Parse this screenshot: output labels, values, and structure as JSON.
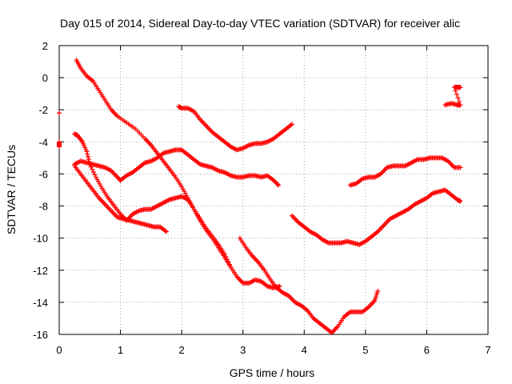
{
  "chart_data": {
    "type": "scatter",
    "title": "Day 015 of 2014, Sidereal Day-to-day VTEC variation (SDTVAR) for receiver alic",
    "xlabel": "GPS time / hours",
    "ylabel": "SDTVAR / TECUs",
    "xlim": [
      0,
      7
    ],
    "ylim": [
      -16,
      2
    ],
    "xticks": [
      "0",
      "1",
      "2",
      "3",
      "4",
      "5",
      "6",
      "7"
    ],
    "yticks": [
      "2",
      "0",
      "-2",
      "-4",
      "-6",
      "-8",
      "-10",
      "-12",
      "-14",
      "-16"
    ],
    "grid": true,
    "marker": "plus",
    "color": "#ff0000",
    "series": [
      {
        "points": [
          [
            0.28,
            1.1
          ],
          [
            0.35,
            0.6
          ],
          [
            0.45,
            0.1
          ],
          [
            0.55,
            -0.2
          ],
          [
            0.65,
            -0.8
          ],
          [
            0.75,
            -1.4
          ],
          [
            0.85,
            -2.0
          ],
          [
            0.95,
            -2.4
          ],
          [
            1.1,
            -2.8
          ],
          [
            1.25,
            -3.2
          ],
          [
            1.4,
            -3.8
          ],
          [
            1.5,
            -4.2
          ],
          [
            1.6,
            -4.7
          ],
          [
            1.7,
            -5.2
          ],
          [
            1.8,
            -5.7
          ],
          [
            1.9,
            -6.2
          ],
          [
            2.0,
            -6.8
          ],
          [
            2.1,
            -7.5
          ],
          [
            2.2,
            -8.2
          ],
          [
            2.3,
            -8.8
          ],
          [
            2.4,
            -9.4
          ],
          [
            2.5,
            -9.9
          ],
          [
            2.6,
            -10.4
          ],
          [
            2.7,
            -11.0
          ],
          [
            2.8,
            -11.8
          ],
          [
            2.9,
            -12.4
          ],
          [
            3.0,
            -12.8
          ],
          [
            3.1,
            -12.8
          ],
          [
            3.2,
            -12.6
          ],
          [
            3.3,
            -12.7
          ],
          [
            3.4,
            -13.0
          ],
          [
            3.5,
            -13.1
          ],
          [
            3.6,
            -13.0
          ]
        ]
      },
      {
        "points": [
          [
            0.25,
            -5.4
          ],
          [
            0.35,
            -5.2
          ],
          [
            0.45,
            -5.3
          ],
          [
            0.55,
            -5.4
          ],
          [
            0.65,
            -5.5
          ],
          [
            0.75,
            -5.6
          ],
          [
            0.85,
            -5.8
          ],
          [
            0.95,
            -6.2
          ],
          [
            1.0,
            -6.4
          ],
          [
            1.1,
            -6.1
          ],
          [
            1.2,
            -5.9
          ],
          [
            1.3,
            -5.6
          ],
          [
            1.4,
            -5.3
          ],
          [
            1.5,
            -5.2
          ],
          [
            1.6,
            -5.0
          ],
          [
            1.7,
            -4.7
          ],
          [
            1.8,
            -4.6
          ],
          [
            1.9,
            -4.5
          ],
          [
            2.0,
            -4.5
          ],
          [
            2.1,
            -4.8
          ],
          [
            2.2,
            -5.1
          ],
          [
            2.3,
            -5.4
          ],
          [
            2.4,
            -5.5
          ],
          [
            2.5,
            -5.6
          ],
          [
            2.6,
            -5.8
          ],
          [
            2.7,
            -5.9
          ],
          [
            2.8,
            -6.1
          ],
          [
            2.9,
            -6.2
          ],
          [
            3.0,
            -6.2
          ],
          [
            3.1,
            -6.1
          ],
          [
            3.2,
            -6.1
          ],
          [
            3.3,
            -6.2
          ],
          [
            3.4,
            -6.1
          ],
          [
            3.5,
            -6.4
          ],
          [
            3.58,
            -6.7
          ]
        ]
      },
      {
        "points": [
          [
            0.25,
            -3.5
          ],
          [
            0.3,
            -3.6
          ],
          [
            0.38,
            -4.0
          ],
          [
            0.45,
            -4.6
          ],
          [
            0.5,
            -5.4
          ],
          [
            0.6,
            -6.2
          ],
          [
            0.7,
            -6.9
          ],
          [
            0.8,
            -7.5
          ],
          [
            0.9,
            -8.0
          ],
          [
            1.0,
            -8.5
          ],
          [
            1.1,
            -8.9
          ],
          [
            1.2,
            -8.5
          ],
          [
            1.3,
            -8.3
          ],
          [
            1.4,
            -8.2
          ],
          [
            1.5,
            -8.2
          ],
          [
            1.6,
            -8.0
          ],
          [
            1.7,
            -7.8
          ],
          [
            1.8,
            -7.6
          ],
          [
            1.9,
            -7.5
          ],
          [
            2.0,
            -7.4
          ],
          [
            2.1,
            -7.6
          ],
          [
            2.2,
            -8.2
          ],
          [
            2.3,
            -8.9
          ],
          [
            2.4,
            -9.5
          ],
          [
            2.5,
            -10.0
          ],
          [
            2.6,
            -10.6
          ],
          [
            2.7,
            -11.2
          ],
          [
            2.8,
            -11.8
          ]
        ]
      },
      {
        "points": [
          [
            0.25,
            -5.5
          ],
          [
            0.35,
            -6.0
          ],
          [
            0.45,
            -6.5
          ],
          [
            0.55,
            -7.0
          ],
          [
            0.65,
            -7.5
          ],
          [
            0.75,
            -7.9
          ],
          [
            0.85,
            -8.3
          ],
          [
            0.95,
            -8.7
          ],
          [
            1.05,
            -8.8
          ],
          [
            1.15,
            -8.9
          ],
          [
            1.25,
            -9.0
          ],
          [
            1.35,
            -9.1
          ],
          [
            1.45,
            -9.2
          ],
          [
            1.55,
            -9.3
          ],
          [
            1.65,
            -9.3
          ],
          [
            1.75,
            -9.6
          ]
        ]
      },
      {
        "points": [
          [
            1.95,
            -1.8
          ],
          [
            2.0,
            -1.9
          ],
          [
            2.1,
            -1.9
          ],
          [
            2.2,
            -2.1
          ],
          [
            2.3,
            -2.6
          ],
          [
            2.4,
            -3.0
          ],
          [
            2.5,
            -3.4
          ],
          [
            2.6,
            -3.7
          ],
          [
            2.7,
            -4.0
          ],
          [
            2.8,
            -4.3
          ],
          [
            2.9,
            -4.5
          ],
          [
            3.0,
            -4.4
          ],
          [
            3.1,
            -4.2
          ],
          [
            3.2,
            -4.1
          ],
          [
            3.3,
            -4.1
          ],
          [
            3.4,
            -4.0
          ],
          [
            3.5,
            -3.8
          ],
          [
            3.6,
            -3.5
          ],
          [
            3.7,
            -3.2
          ],
          [
            3.8,
            -2.9
          ]
        ]
      },
      {
        "points": [
          [
            2.95,
            -10.0
          ],
          [
            3.05,
            -10.6
          ],
          [
            3.15,
            -11.1
          ],
          [
            3.25,
            -11.5
          ],
          [
            3.35,
            -12.0
          ],
          [
            3.45,
            -12.6
          ],
          [
            3.55,
            -13.1
          ],
          [
            3.65,
            -13.4
          ],
          [
            3.75,
            -13.6
          ],
          [
            3.85,
            -14.0
          ],
          [
            3.95,
            -14.2
          ],
          [
            4.05,
            -14.5
          ],
          [
            4.15,
            -15.0
          ],
          [
            4.25,
            -15.3
          ],
          [
            4.35,
            -15.6
          ],
          [
            4.45,
            -15.9
          ],
          [
            4.55,
            -15.5
          ],
          [
            4.65,
            -14.9
          ],
          [
            4.75,
            -14.6
          ],
          [
            4.85,
            -14.6
          ],
          [
            4.95,
            -14.6
          ],
          [
            5.05,
            -14.3
          ],
          [
            5.15,
            -13.9
          ],
          [
            5.2,
            -13.3
          ]
        ]
      },
      {
        "points": [
          [
            3.8,
            -8.6
          ],
          [
            3.9,
            -9.0
          ],
          [
            4.0,
            -9.3
          ],
          [
            4.1,
            -9.6
          ],
          [
            4.2,
            -9.8
          ],
          [
            4.3,
            -10.1
          ],
          [
            4.4,
            -10.3
          ],
          [
            4.5,
            -10.3
          ],
          [
            4.6,
            -10.3
          ],
          [
            4.7,
            -10.2
          ],
          [
            4.8,
            -10.3
          ],
          [
            4.9,
            -10.4
          ],
          [
            5.0,
            -10.2
          ],
          [
            5.1,
            -9.9
          ],
          [
            5.2,
            -9.6
          ],
          [
            5.3,
            -9.2
          ],
          [
            5.4,
            -8.8
          ],
          [
            5.5,
            -8.6
          ],
          [
            5.6,
            -8.4
          ],
          [
            5.7,
            -8.2
          ],
          [
            5.8,
            -7.9
          ],
          [
            5.9,
            -7.7
          ],
          [
            6.0,
            -7.5
          ],
          [
            6.1,
            -7.2
          ],
          [
            6.2,
            -7.1
          ],
          [
            6.3,
            -7.0
          ],
          [
            6.4,
            -7.3
          ],
          [
            6.5,
            -7.6
          ],
          [
            6.55,
            -7.7
          ]
        ]
      },
      {
        "points": [
          [
            4.75,
            -6.7
          ],
          [
            4.85,
            -6.6
          ],
          [
            4.95,
            -6.3
          ],
          [
            5.05,
            -6.2
          ],
          [
            5.15,
            -6.2
          ],
          [
            5.25,
            -6.0
          ],
          [
            5.35,
            -5.6
          ],
          [
            5.45,
            -5.5
          ],
          [
            5.55,
            -5.5
          ],
          [
            5.65,
            -5.5
          ],
          [
            5.75,
            -5.3
          ],
          [
            5.85,
            -5.1
          ],
          [
            5.95,
            -5.1
          ],
          [
            6.05,
            -5.0
          ],
          [
            6.15,
            -5.0
          ],
          [
            6.25,
            -5.0
          ],
          [
            6.35,
            -5.2
          ],
          [
            6.45,
            -5.6
          ],
          [
            6.55,
            -5.6
          ]
        ]
      },
      {
        "points": [
          [
            6.3,
            -1.7
          ],
          [
            6.4,
            -1.6
          ],
          [
            6.5,
            -1.7
          ],
          [
            6.55,
            -1.7
          ],
          [
            6.45,
            -0.6
          ],
          [
            6.5,
            -0.6
          ],
          [
            6.55,
            -0.6
          ]
        ]
      },
      {
        "points": [
          [
            0.0,
            -2.2
          ],
          [
            0.0,
            -4.0
          ],
          [
            0.0,
            -4.3
          ]
        ]
      }
    ]
  }
}
